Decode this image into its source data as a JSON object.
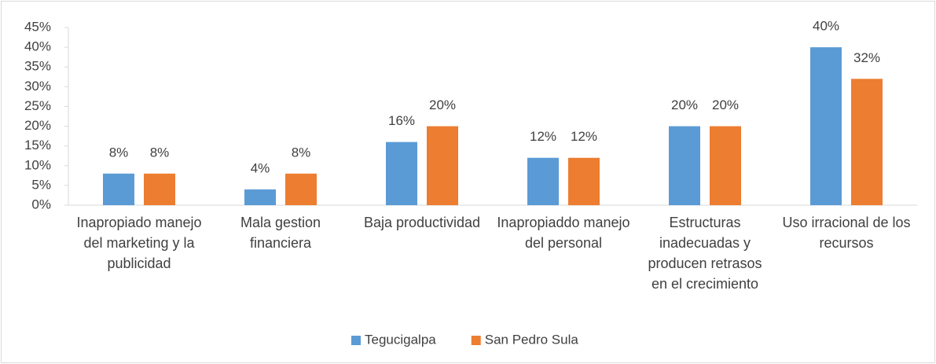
{
  "chart_data": {
    "type": "bar",
    "categories": [
      "Inapropiado manejo del marketing y la publicidad",
      "Mala gestion financiera",
      "Baja productividad",
      "Inapropiaddo manejo del personal",
      "Estructuras inadecuadas y producen retrasos en el crecimiento",
      "Uso irracional de los recursos"
    ],
    "series": [
      {
        "name": "Tegucigalpa",
        "color": "#5b9bd5",
        "values": [
          8,
          4,
          16,
          12,
          20,
          40
        ],
        "value_labels": [
          "8%",
          "4%",
          "16%",
          "12%",
          "20%",
          "40%"
        ]
      },
      {
        "name": "San Pedro Sula",
        "color": "#ed7d31",
        "values": [
          8,
          8,
          20,
          12,
          20,
          32
        ],
        "value_labels": [
          "8%",
          "8%",
          "20%",
          "12%",
          "20%",
          "32%"
        ]
      }
    ],
    "ylim": [
      0,
      45
    ],
    "yticks": [
      {
        "value": 0,
        "label": "0%"
      },
      {
        "value": 5,
        "label": "5%"
      },
      {
        "value": 10,
        "label": "10%"
      },
      {
        "value": 15,
        "label": "15%"
      },
      {
        "value": 20,
        "label": "20%"
      },
      {
        "value": 25,
        "label": "25%"
      },
      {
        "value": 30,
        "label": "30%"
      },
      {
        "value": 35,
        "label": "35%"
      },
      {
        "value": 40,
        "label": "40%"
      },
      {
        "value": 45,
        "label": "45%"
      }
    ],
    "grid": false,
    "legend": "bottom"
  }
}
